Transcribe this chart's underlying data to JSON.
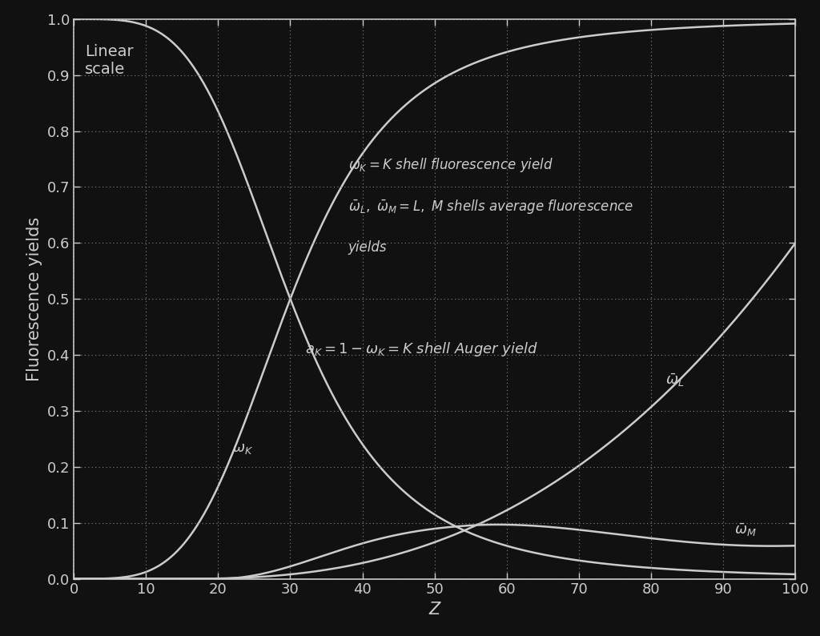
{
  "background_color": "#111111",
  "plot_bg_color": "#111111",
  "text_color": "#cccccc",
  "curve_color": "#cccccc",
  "grid_color": "#555555",
  "xlim": [
    0,
    100
  ],
  "ylim": [
    0,
    1.0
  ],
  "xlabel": "Z",
  "ylabel": "Fluorescence yields",
  "xticks": [
    0,
    10,
    20,
    30,
    40,
    50,
    60,
    70,
    80,
    90,
    100
  ],
  "yticks": [
    0.0,
    0.1,
    0.2,
    0.3,
    0.4,
    0.5,
    0.6,
    0.7,
    0.8,
    0.9,
    1.0
  ],
  "label_fontsize": 15,
  "tick_fontsize": 13,
  "annot_fontsize": 13,
  "linear_scale_fontsize": 14
}
